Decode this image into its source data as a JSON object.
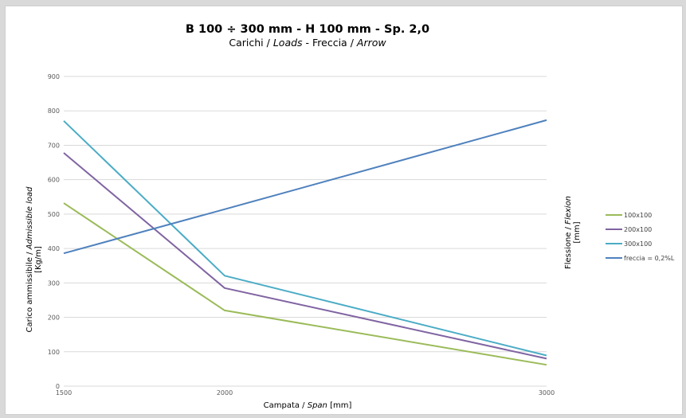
{
  "chart_data": {
    "type": "line",
    "title": "B 100 ÷ 300 mm - H 100 mm - Sp. 2,0",
    "subtitle": {
      "a": "Carichi / ",
      "b": "Loads",
      "c": " - Freccia / ",
      "d": "Arrow"
    },
    "xlabel": {
      "a": "Campata / ",
      "b": "Span",
      "c": " [mm]"
    },
    "ylabel": {
      "a": "Carico ammissibile / ",
      "b": "Admissible load",
      "unit": "[Kg/m]"
    },
    "ylabel2": {
      "a": "Flessione / ",
      "b": "Flexion",
      "unit": "[mm]"
    },
    "x": [
      1500,
      2000,
      3000
    ],
    "ylim": [
      0,
      900
    ],
    "yticks": [
      0,
      100,
      200,
      300,
      400,
      500,
      600,
      700,
      800,
      900
    ],
    "grid": true,
    "legend_position": "right",
    "series": [
      {
        "name": "100x100",
        "color": "#9bbb59",
        "values": [
          532,
          220,
          62
        ]
      },
      {
        "name": "200x100",
        "color": "#8064a2",
        "values": [
          678,
          285,
          80
        ]
      },
      {
        "name": "300x100",
        "color": "#4bacc6",
        "values": [
          771,
          321,
          89
        ]
      },
      {
        "name": "freccia = 0,2%L",
        "color": "#4f81bd",
        "values": [
          386,
          514,
          773
        ]
      }
    ]
  }
}
